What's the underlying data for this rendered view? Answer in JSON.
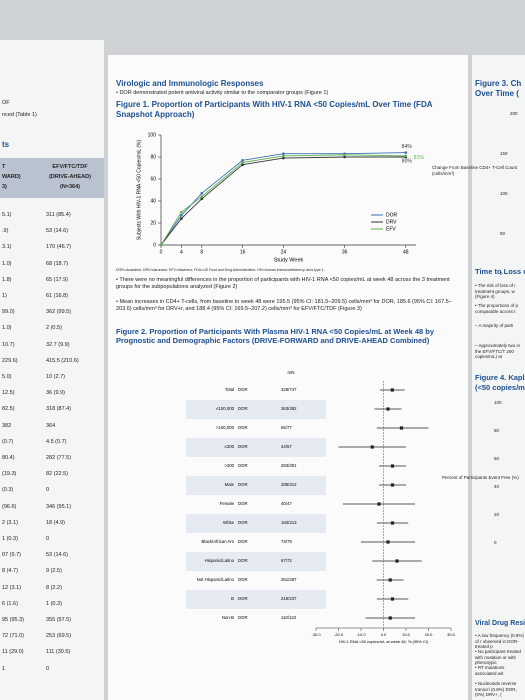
{
  "left": {
    "labels": [
      "OF",
      "nced (Table 1)",
      "ts"
    ],
    "header": [
      "EFV/FTC/TDF",
      "(DRIVE-AHEAD)",
      "(N=364)"
    ],
    "header_left": [
      "T",
      "WARD)",
      "3)"
    ],
    "fragments": [
      "5.1)",
      ".9)",
      "3.1)",
      "1.0)",
      "1.8)",
      "1)",
      "99.0)",
      "1.0)",
      "10.7)",
      "229.6)",
      "5.0)",
      "12.5)",
      "82.5)",
      "382",
      "(0.7)",
      "80.4)",
      "(19.3)",
      "(0.3)",
      "(96.6)",
      "2 (3.1)",
      "1 (0.3)",
      "07 (9.7)",
      "8 (4.7)",
      "12 (3.1)",
      "6 (1.6)",
      "95 (95.3)",
      "72 (71.0)",
      "11 (29.0)",
      "1"
    ],
    "rows": [
      "311 (85.4)",
      "53 (14.6)",
      "170 (46.7)",
      "68 (18.7)",
      "65 (17.9)",
      "61 (16.8)",
      "362 (99.5)",
      "2 (0.5)",
      "32.7 (9.9)",
      "415.5 (210.6)",
      "10 (2.7)",
      "36 (9.9)",
      "318 (87.4)",
      "364",
      "4.5 (0.7)",
      "282 (77.5)",
      "82 (22.5)",
      "0",
      "346 (95.1)",
      "18 (4.9)",
      "0",
      "53 (14.6)",
      "9 (2.5)",
      "8 (2.2)",
      "1 (0.3)",
      "355 (97.5)",
      "253 (69.5)",
      "111 (30.5)",
      "0"
    ]
  },
  "middle": {
    "section_title": "Virologic and Immunologic Responses",
    "intro": "• DOR demonstrated potent antiviral activity similar to the comparator groups (Figure 1)",
    "figure1_title": "Figure 1. Proportion of Participants With HIV-1 RNA <50 Copies/mL Over Time (FDA Snapshot Approach)",
    "footnote": "DOR=doravirine; DRV=darunavir; EFV=efavirenz; FDA=US Food and Drug Administration; HIV=human immunodeficiency virus type 1.",
    "bullets": [
      "• There were no meaningful differences in the proportion of participants with HIV-1 RNA <50 copies/mL at week 48 across the 3 treatment groups for the subpopulations analyzed (Figure 2)",
      "• Mean increases in CD4+ T-cells, from baseline to week 48 were 195.5 (95% CI: 181.5–209.5) cells/mm³ for DOR, 185.6 (95% CI: 167.5–203.6) cells/mm³ for DRV+r, and 188.4 (95% CI: 169.5–207.2) cells/mm³ for EFV/FTC/TDF (Figure 3)"
    ],
    "figure2_title": "Figure 2. Proportion of Participants With Plasma HIV-1 RNA <50 Copies/mL at Week 48 by Prognostic and Demographic Factors (DRIVE-FORWARD and DRIVE-AHEAD Combined)"
  },
  "forest": {
    "n_header": "n/N",
    "arm": "DOR",
    "x_label": "HIV-1 RNA <50 copies/mL at week 48, % (95% CI)",
    "xlim": [
      -30,
      30
    ],
    "xticks": [
      {
        "value": -30,
        "label": "-30.0"
      },
      {
        "value": -20,
        "label": "-20.0"
      },
      {
        "value": -10,
        "label": "-10.0"
      },
      {
        "value": 0,
        "label": "0.0"
      },
      {
        "value": 10,
        "label": "10.0"
      },
      {
        "value": 20,
        "label": "20.0"
      },
      {
        "value": 30,
        "label": "30.0"
      }
    ],
    "rows": [
      {
        "label": "Total",
        "n": "328/747",
        "estimate": 3.9,
        "ci": [
          -1.6,
          9.4
        ]
      },
      {
        "label": "≤100,000",
        "n": "263/282",
        "estimate": 2.0,
        "ci": [
          -4,
          8
        ]
      },
      {
        "label": ">100,000",
        "n": "65/77",
        "estimate": 8.0,
        "ci": [
          -3,
          20
        ]
      },
      {
        "label": "≤200",
        "n": "44/57",
        "estimate": -5,
        "ci": [
          -20,
          10
        ]
      },
      {
        "label": ">200",
        "n": "283/301",
        "estimate": 4,
        "ci": [
          -2,
          10
        ]
      },
      {
        "label": "Male",
        "n": "288/312",
        "estimate": 4,
        "ci": [
          -2,
          10
        ]
      },
      {
        "label": "Female",
        "n": "40/47",
        "estimate": -2,
        "ci": [
          -18,
          14
        ]
      },
      {
        "label": "White",
        "n": "183/213",
        "estimate": 4,
        "ci": [
          -3,
          11
        ]
      },
      {
        "label": "Black/African Am",
        "n": "73/79",
        "estimate": 2,
        "ci": [
          -10,
          14
        ]
      },
      {
        "label": "Hispanic/Latino",
        "n": "67/72",
        "estimate": 6,
        "ci": [
          -5,
          17
        ]
      },
      {
        "label": "Not Hispanic/Latino",
        "n": "261/287",
        "estimate": 3,
        "ci": [
          -3,
          9
        ]
      },
      {
        "label": "B",
        "n": "218/237",
        "estimate": 4,
        "ci": [
          -3,
          11
        ]
      },
      {
        "label": "Non-B",
        "n": "110/122",
        "estimate": 3,
        "ci": [
          -8,
          14
        ]
      }
    ]
  },
  "chart_data": {
    "type": "line",
    "x_label": "Study Week",
    "y_label": "Subjects With HIV-1 RNA <50 Copies/mL (%)",
    "x": [
      0,
      4,
      8,
      16,
      24,
      36,
      48
    ],
    "xlim": [
      0,
      50
    ],
    "xticks": [
      0,
      4,
      8,
      16,
      24,
      36,
      48
    ],
    "ylim": [
      0,
      100
    ],
    "yticks": [
      0,
      20,
      40,
      60,
      80,
      100
    ],
    "legend": "lower-right",
    "series": [
      {
        "name": "DOR",
        "color": "#3a6fb8",
        "values": [
          0,
          27,
          47,
          77,
          83,
          83,
          84
        ],
        "value_labels": [
          null,
          null,
          null,
          null,
          null,
          null,
          "84%"
        ]
      },
      {
        "name": "DRV",
        "color": "#333333",
        "values": [
          0,
          24,
          42,
          73,
          79,
          80,
          80
        ],
        "value_labels": [
          null,
          null,
          null,
          null,
          null,
          null,
          "80%"
        ]
      },
      {
        "name": "EFV",
        "color": "#5bb04c",
        "values": [
          0,
          30,
          44,
          75,
          81,
          82,
          81
        ],
        "value_labels": [
          null,
          null,
          null,
          null,
          null,
          null,
          "81%"
        ]
      }
    ]
  },
  "right": {
    "fig3": [
      "Figure 3. Ch",
      "Over Time ("
    ],
    "fig3_axis": "Change From Baseline CD4+ T-Cell Count (cells/mm³)",
    "fig3_ticks": [
      "200",
      "150",
      "100",
      "50",
      "0"
    ],
    "section": "Time to Loss o",
    "bullets": [
      "• The risk of loss of r treatment groups, w (Figure 4)",
      "• The proportions of p comparable across t",
      "– A majority of parti",
      "– Approximately two in the EFV/FTC/T 200 copies/mL) at"
    ],
    "fig4": [
      "Figure 4. Kaplan-",
      "(<50 copies/mL)"
    ],
    "fig4_axis": "Percent of Participants Event Free (%)",
    "fig4_ticks": [
      "100",
      "80",
      "60",
      "40",
      "20",
      "0"
    ],
    "section2": "Viral Drug Resistanc",
    "bullets2": [
      "• A low frequency (0.8%) of r observed in DOR-treated p",
      "• No participant treated with mutation or with phenotypic",
      "• RT mutations associated wit",
      "• Nucleoside reverse transcri (0.8%) DOR, (0%) DRV+, ("
    ]
  }
}
